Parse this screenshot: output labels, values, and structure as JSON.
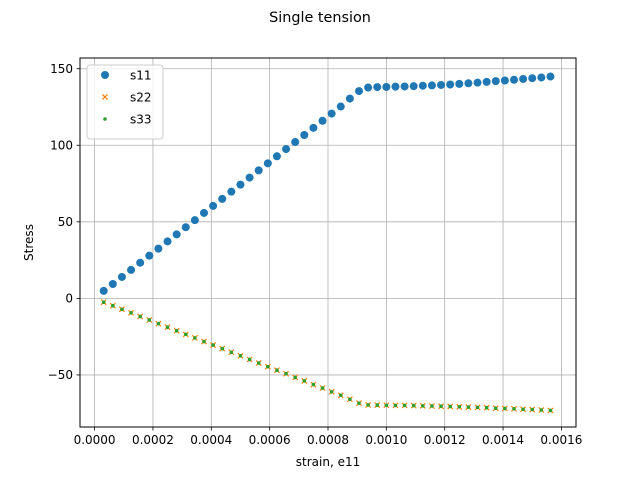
{
  "chart_data": {
    "type": "scatter",
    "title": "Single tension",
    "xlabel": "strain, e11",
    "ylabel": "Stress",
    "xlim": [
      -5e-05,
      0.00165
    ],
    "ylim": [
      -84,
      157
    ],
    "grid": true,
    "legend_position": "upper-left",
    "x_ticks": [
      "0.0000",
      "0.0002",
      "0.0004",
      "0.0006",
      "0.0008",
      "0.0010",
      "0.0012",
      "0.0014",
      "0.0016"
    ],
    "x_tick_values": [
      0.0,
      0.0002,
      0.0004,
      0.0006,
      0.0008,
      0.001,
      0.0012,
      0.0014,
      0.0016
    ],
    "y_ticks": [
      "−50",
      "0",
      "50",
      "100",
      "150"
    ],
    "y_tick_values": [
      -50,
      0,
      50,
      100,
      150
    ],
    "x": [
      3.125e-05,
      6.25e-05,
      9.375e-05,
      0.000125,
      0.00015625,
      0.0001875,
      0.00021875,
      0.00025,
      0.00028125,
      0.0003125,
      0.00034375,
      0.000375,
      0.00040625,
      0.0004375,
      0.00046875,
      0.0005,
      0.00053125,
      0.0005625,
      0.00059375,
      0.000625,
      0.00065625,
      0.0006875,
      0.00071875,
      0.00075,
      0.00078125,
      0.0008125,
      0.00084375,
      0.000875,
      0.00090625,
      0.0009375,
      0.00096875,
      0.001,
      0.00103125,
      0.0010625,
      0.00109375,
      0.001125,
      0.00115625,
      0.0011875,
      0.00121875,
      0.00125,
      0.00128125,
      0.0013125,
      0.00134375,
      0.001375,
      0.00140625,
      0.0014375,
      0.00146875,
      0.0015,
      0.00153125,
      0.0015625
    ],
    "series": [
      {
        "name": "s11",
        "marker": "circle",
        "color": "#1f77b4",
        "values": [
          4.9,
          9.4,
          14.0,
          18.6,
          23.3,
          27.9,
          32.5,
          37.2,
          41.8,
          46.5,
          51.1,
          55.8,
          60.4,
          65.0,
          69.7,
          74.3,
          78.9,
          83.6,
          88.2,
          92.8,
          97.5,
          102.1,
          106.7,
          111.4,
          116.0,
          120.7,
          125.3,
          130.5,
          135.4,
          137.7,
          138.0,
          138.1,
          138.3,
          138.4,
          138.6,
          138.9,
          139.1,
          139.4,
          139.7,
          140.1,
          140.5,
          140.9,
          141.4,
          141.9,
          142.3,
          142.8,
          143.3,
          143.8,
          144.3,
          144.9
        ]
      },
      {
        "name": "s22",
        "marker": "x",
        "color": "#ff7f0e",
        "values": [
          -2.5,
          -4.8,
          -7.1,
          -9.4,
          -11.8,
          -14.1,
          -16.5,
          -18.8,
          -21.1,
          -23.5,
          -25.8,
          -28.2,
          -30.5,
          -32.8,
          -35.2,
          -37.5,
          -39.9,
          -42.2,
          -44.6,
          -46.9,
          -49.2,
          -51.6,
          -53.9,
          -56.3,
          -58.6,
          -61.0,
          -63.3,
          -65.9,
          -68.4,
          -69.6,
          -69.7,
          -69.8,
          -69.9,
          -69.9,
          -70.0,
          -70.2,
          -70.3,
          -70.4,
          -70.6,
          -70.8,
          -71.0,
          -71.2,
          -71.4,
          -71.7,
          -71.9,
          -72.1,
          -72.4,
          -72.6,
          -72.9,
          -73.2
        ]
      },
      {
        "name": "s33",
        "marker": "point",
        "color": "#2ca02c",
        "values": [
          -2.5,
          -4.8,
          -7.1,
          -9.4,
          -11.8,
          -14.1,
          -16.5,
          -18.8,
          -21.1,
          -23.5,
          -25.8,
          -28.2,
          -30.5,
          -32.8,
          -35.2,
          -37.5,
          -39.9,
          -42.2,
          -44.6,
          -46.9,
          -49.2,
          -51.6,
          -53.9,
          -56.3,
          -58.6,
          -61.0,
          -63.3,
          -65.9,
          -68.4,
          -69.6,
          -69.7,
          -69.8,
          -69.9,
          -69.9,
          -70.0,
          -70.2,
          -70.3,
          -70.4,
          -70.6,
          -70.8,
          -71.0,
          -71.2,
          -71.4,
          -71.7,
          -71.9,
          -72.1,
          -72.4,
          -72.6,
          -72.9,
          -73.2
        ]
      }
    ]
  }
}
